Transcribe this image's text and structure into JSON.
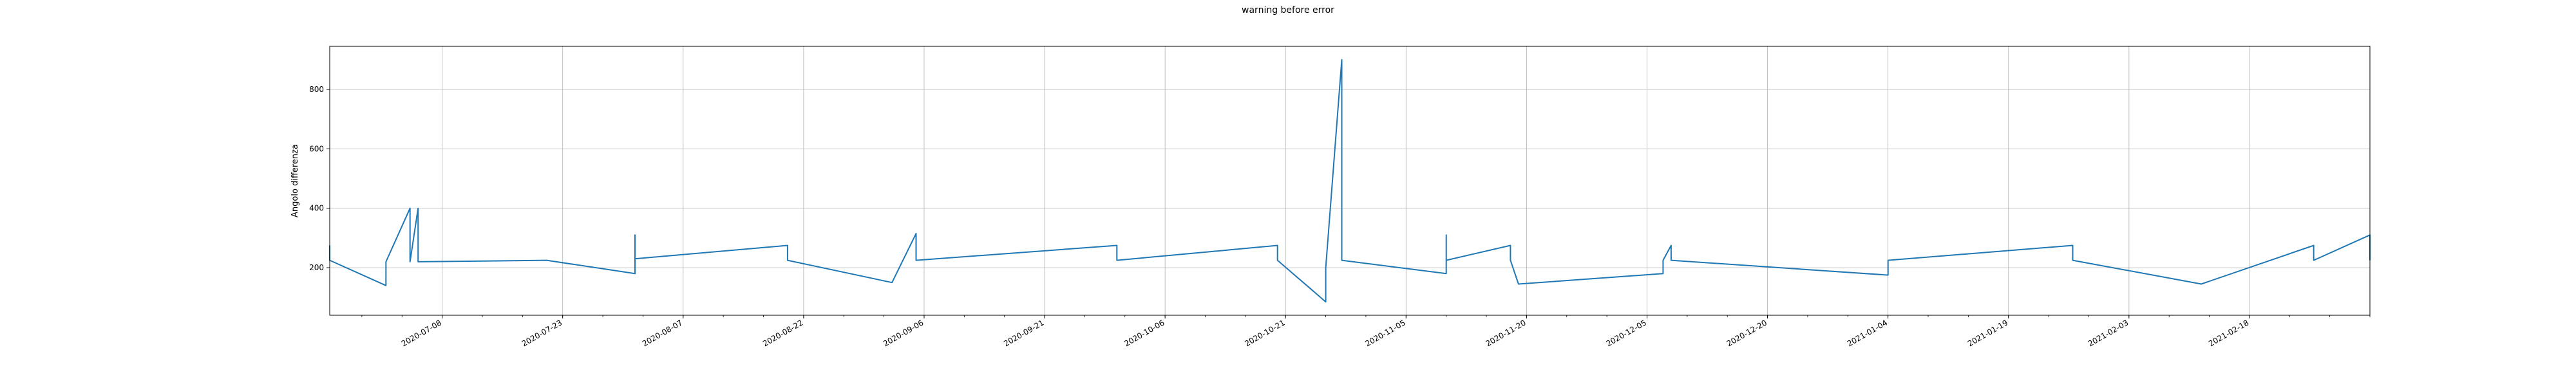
{
  "chart_data": {
    "type": "line",
    "title": "warning before error",
    "xlabel": "",
    "ylabel": "Angolo differenza",
    "grid": true,
    "x_axis": {
      "range": [
        "2020-06-24",
        "2021-03-05"
      ],
      "tick_labels": [
        "2020-07-08",
        "2020-07-23",
        "2020-08-07",
        "2020-08-22",
        "2020-09-06",
        "2020-09-21",
        "2020-10-06",
        "2020-10-21",
        "2020-11-05",
        "2020-11-20",
        "2020-12-05",
        "2020-12-20",
        "2021-01-04",
        "2021-01-19",
        "2021-02-03",
        "2021-02-18"
      ]
    },
    "y_axis": {
      "range": [
        40,
        945
      ],
      "ticks": [
        200,
        400,
        600,
        800
      ]
    },
    "series": [
      {
        "color": "#1f77b4",
        "points": [
          [
            "2020-06-24",
            275
          ],
          [
            "2020-06-24",
            225
          ],
          [
            "2020-07-01",
            140
          ],
          [
            "2020-07-01",
            220
          ],
          [
            "2020-07-04",
            400
          ],
          [
            "2020-07-04",
            220
          ],
          [
            "2020-07-04",
            400
          ],
          [
            "2020-07-04",
            220
          ],
          [
            "2020-07-05",
            400
          ],
          [
            "2020-07-05",
            220
          ],
          [
            "2020-07-21",
            225
          ],
          [
            "2020-08-01",
            180
          ],
          [
            "2020-08-01",
            310
          ],
          [
            "2020-08-01",
            230
          ],
          [
            "2020-08-20",
            275
          ],
          [
            "2020-08-20",
            225
          ],
          [
            "2020-09-02",
            150
          ],
          [
            "2020-09-05",
            315
          ],
          [
            "2020-09-05",
            310
          ],
          [
            "2020-09-05",
            225
          ],
          [
            "2020-09-30",
            275
          ],
          [
            "2020-09-30",
            225
          ],
          [
            "2020-10-20",
            275
          ],
          [
            "2020-10-20",
            225
          ],
          [
            "2020-10-26",
            85
          ],
          [
            "2020-10-26",
            200
          ],
          [
            "2020-10-28",
            900
          ],
          [
            "2020-10-28",
            230
          ],
          [
            "2020-10-28",
            225
          ],
          [
            "2020-11-10",
            180
          ],
          [
            "2020-11-10",
            310
          ],
          [
            "2020-11-10",
            225
          ],
          [
            "2020-11-18",
            275
          ],
          [
            "2020-11-18",
            225
          ],
          [
            "2020-11-19",
            145
          ],
          [
            "2020-12-07",
            180
          ],
          [
            "2020-12-07",
            225
          ],
          [
            "2020-12-08",
            275
          ],
          [
            "2020-12-08",
            225
          ],
          [
            "2021-01-04",
            175
          ],
          [
            "2021-01-04",
            225
          ],
          [
            "2021-01-27",
            275
          ],
          [
            "2021-01-27",
            225
          ],
          [
            "2021-02-12",
            145
          ],
          [
            "2021-02-26",
            275
          ],
          [
            "2021-02-26",
            225
          ],
          [
            "2021-03-05",
            310
          ],
          [
            "2021-03-05",
            225
          ]
        ]
      }
    ]
  }
}
